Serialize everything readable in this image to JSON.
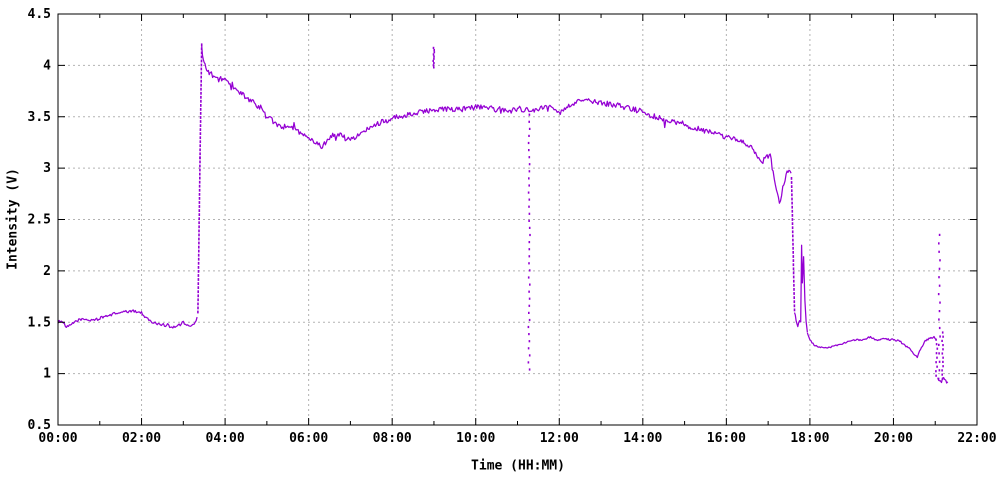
{
  "figure": {
    "background": "#ffffff",
    "border_color": "#000000",
    "grid_color": "#b3b3b3",
    "text_color": "#000000"
  },
  "chart_data": {
    "type": "line",
    "title": "",
    "xlabel": "Time (HH:MM)",
    "ylabel": "Intensity (V)",
    "xlim": [
      0,
      22
    ],
    "ylim": [
      0.5,
      4.5
    ],
    "grid": true,
    "legend": "none",
    "line_color": "#9400d3",
    "xticks_major": [
      {
        "t": 0,
        "label": "00:00"
      },
      {
        "t": 2,
        "label": "02:00"
      },
      {
        "t": 4,
        "label": "04:00"
      },
      {
        "t": 6,
        "label": "06:00"
      },
      {
        "t": 8,
        "label": "08:00"
      },
      {
        "t": 10,
        "label": "10:00"
      },
      {
        "t": 12,
        "label": "12:00"
      },
      {
        "t": 14,
        "label": "14:00"
      },
      {
        "t": 16,
        "label": "16:00"
      },
      {
        "t": 18,
        "label": "18:00"
      },
      {
        "t": 20,
        "label": "20:00"
      },
      {
        "t": 22,
        "label": "22:00"
      }
    ],
    "xticks_minor": [
      1,
      3,
      5,
      7,
      9,
      11,
      13,
      15,
      17,
      19,
      21
    ],
    "yticks": [
      {
        "v": 0.5,
        "label": "0.5"
      },
      {
        "v": 1.0,
        "label": "1"
      },
      {
        "v": 1.5,
        "label": "1.5"
      },
      {
        "v": 2.0,
        "label": "2"
      },
      {
        "v": 2.5,
        "label": "2.5"
      },
      {
        "v": 3.0,
        "label": "3"
      },
      {
        "v": 3.5,
        "label": "3.5"
      },
      {
        "v": 4.0,
        "label": "4"
      },
      {
        "v": 4.5,
        "label": "4.5"
      }
    ],
    "series": [
      {
        "name": "intensity",
        "segments": [
          {
            "style": "line",
            "noise": 0.013,
            "points": [
              [
                0.0,
                1.5
              ],
              [
                0.08,
                1.52
              ],
              [
                0.2,
                1.45
              ],
              [
                0.3,
                1.47
              ],
              [
                0.42,
                1.51
              ],
              [
                0.55,
                1.53
              ],
              [
                0.75,
                1.52
              ],
              [
                0.95,
                1.53
              ],
              [
                1.15,
                1.56
              ],
              [
                1.4,
                1.59
              ],
              [
                1.6,
                1.6
              ],
              [
                1.85,
                1.61
              ],
              [
                2.0,
                1.59
              ],
              [
                2.1,
                1.55
              ],
              [
                2.25,
                1.5
              ],
              [
                2.45,
                1.48
              ],
              [
                2.6,
                1.47
              ],
              [
                2.75,
                1.45
              ],
              [
                2.9,
                1.47
              ],
              [
                3.0,
                1.5
              ],
              [
                3.08,
                1.46
              ],
              [
                3.18,
                1.47
              ],
              [
                3.28,
                1.49
              ],
              [
                3.33,
                1.55
              ]
            ]
          },
          {
            "style": "dots",
            "noise": 0,
            "points": [
              [
                3.35,
                1.6
              ],
              [
                3.4,
                3.1
              ],
              [
                3.44,
                4.2
              ]
            ]
          },
          {
            "style": "line",
            "noise": 0.027,
            "points": [
              [
                3.44,
                4.2
              ],
              [
                3.46,
                4.1
              ],
              [
                3.5,
                4.01
              ],
              [
                3.56,
                3.97
              ],
              [
                3.62,
                3.93
              ],
              [
                3.7,
                3.9
              ],
              [
                3.8,
                3.88
              ],
              [
                3.92,
                3.87
              ],
              [
                4.02,
                3.85
              ],
              [
                4.12,
                3.82
              ],
              [
                4.25,
                3.78
              ],
              [
                4.4,
                3.73
              ],
              [
                4.55,
                3.68
              ],
              [
                4.7,
                3.63
              ],
              [
                4.85,
                3.59
              ],
              [
                5.0,
                3.52
              ],
              [
                5.15,
                3.45
              ],
              [
                5.3,
                3.42
              ],
              [
                5.45,
                3.4
              ],
              [
                5.6,
                3.38
              ],
              [
                5.75,
                3.36
              ],
              [
                5.9,
                3.33
              ],
              [
                6.05,
                3.28
              ],
              [
                6.2,
                3.24
              ],
              [
                6.33,
                3.21
              ],
              [
                6.45,
                3.28
              ],
              [
                6.55,
                3.32
              ],
              [
                6.65,
                3.29
              ],
              [
                6.78,
                3.34
              ],
              [
                6.9,
                3.28
              ],
              [
                7.0,
                3.27
              ],
              [
                7.15,
                3.31
              ],
              [
                7.3,
                3.35
              ],
              [
                7.5,
                3.39
              ],
              [
                7.7,
                3.44
              ],
              [
                7.9,
                3.47
              ],
              [
                8.1,
                3.5
              ],
              [
                8.35,
                3.52
              ],
              [
                8.6,
                3.54
              ],
              [
                8.85,
                3.56
              ],
              [
                9.1,
                3.57
              ],
              [
                9.35,
                3.58
              ],
              [
                9.6,
                3.57
              ],
              [
                9.85,
                3.59
              ],
              [
                10.1,
                3.59
              ],
              [
                10.35,
                3.58
              ],
              [
                10.6,
                3.56
              ],
              [
                10.85,
                3.56
              ],
              [
                11.1,
                3.57
              ],
              [
                11.35,
                3.56
              ],
              [
                11.55,
                3.59
              ],
              [
                11.7,
                3.61
              ],
              [
                11.85,
                3.57
              ],
              [
                12.0,
                3.54
              ],
              [
                12.15,
                3.59
              ],
              [
                12.3,
                3.62
              ],
              [
                12.5,
                3.65
              ],
              [
                12.65,
                3.66
              ],
              [
                12.8,
                3.65
              ],
              [
                12.95,
                3.64
              ],
              [
                13.1,
                3.63
              ],
              [
                13.3,
                3.62
              ],
              [
                13.5,
                3.6
              ],
              [
                13.7,
                3.58
              ],
              [
                13.9,
                3.56
              ],
              [
                14.1,
                3.53
              ],
              [
                14.3,
                3.5
              ],
              [
                14.5,
                3.48
              ],
              [
                14.7,
                3.46
              ],
              [
                14.9,
                3.44
              ],
              [
                15.1,
                3.41
              ],
              [
                15.3,
                3.39
              ],
              [
                15.5,
                3.36
              ],
              [
                15.7,
                3.34
              ],
              [
                15.9,
                3.31
              ],
              [
                16.1,
                3.29
              ],
              [
                16.3,
                3.27
              ],
              [
                16.45,
                3.24
              ],
              [
                16.6,
                3.2
              ],
              [
                16.75,
                3.12
              ],
              [
                16.85,
                3.06
              ],
              [
                16.95,
                3.11
              ],
              [
                17.05,
                3.12
              ],
              [
                17.12,
                2.98
              ],
              [
                17.2,
                2.78
              ],
              [
                17.27,
                2.65
              ],
              [
                17.35,
                2.8
              ],
              [
                17.43,
                2.93
              ],
              [
                17.5,
                2.99
              ],
              [
                17.55,
                2.95
              ]
            ]
          },
          {
            "style": "dots",
            "noise": 0,
            "points": [
              [
                17.56,
                2.9
              ],
              [
                17.63,
                1.62
              ]
            ]
          },
          {
            "style": "line",
            "noise": 0.012,
            "points": [
              [
                17.63,
                1.6
              ],
              [
                17.67,
                1.52
              ],
              [
                17.71,
                1.47
              ],
              [
                17.75,
                1.52
              ],
              [
                17.78,
                1.5
              ]
            ]
          },
          {
            "style": "line",
            "noise": 0.008,
            "points": [
              [
                17.78,
                1.5
              ],
              [
                17.8,
                2.25
              ],
              [
                17.82,
                1.88
              ],
              [
                17.85,
                2.14
              ],
              [
                17.88,
                1.72
              ],
              [
                17.91,
                1.5
              ],
              [
                17.94,
                1.4
              ]
            ]
          },
          {
            "style": "line",
            "noise": 0.008,
            "points": [
              [
                17.94,
                1.4
              ],
              [
                18.0,
                1.33
              ],
              [
                18.1,
                1.28
              ],
              [
                18.2,
                1.26
              ],
              [
                18.35,
                1.25
              ],
              [
                18.5,
                1.26
              ],
              [
                18.7,
                1.28
              ],
              [
                18.9,
                1.31
              ],
              [
                19.1,
                1.33
              ],
              [
                19.3,
                1.33
              ],
              [
                19.45,
                1.36
              ],
              [
                19.6,
                1.32
              ],
              [
                19.75,
                1.35
              ],
              [
                19.9,
                1.33
              ],
              [
                20.0,
                1.33
              ],
              [
                20.15,
                1.32
              ],
              [
                20.25,
                1.28
              ],
              [
                20.4,
                1.24
              ],
              [
                20.5,
                1.18
              ],
              [
                20.57,
                1.16
              ],
              [
                20.65,
                1.24
              ],
              [
                20.76,
                1.32
              ],
              [
                20.85,
                1.34
              ],
              [
                20.97,
                1.35
              ],
              [
                21.02,
                1.33
              ]
            ]
          },
          {
            "style": "line",
            "noise": 0.022,
            "points": [
              [
                21.06,
                0.97
              ],
              [
                21.1,
                0.94
              ],
              [
                21.15,
                0.92
              ],
              [
                21.2,
                0.95
              ],
              [
                21.25,
                0.93
              ],
              [
                21.3,
                0.92
              ]
            ]
          }
        ],
        "dropout_events": [
          {
            "name": "blip-09:00",
            "t": 9.0,
            "from": 3.98,
            "to": 4.17,
            "spacing": 2
          },
          {
            "name": "dropout-11:17",
            "t": 11.28,
            "from": 3.52,
            "to": 1.04,
            "spacing": 7
          },
          {
            "name": "drop-21:02",
            "t": 21.03,
            "from": 1.33,
            "to": 0.98,
            "spacing": 4
          },
          {
            "name": "spike-21:06",
            "t": 21.1,
            "from": 0.95,
            "to": 2.35,
            "spacing": 8
          },
          {
            "name": "drop-21:10",
            "t": 21.17,
            "from": 1.4,
            "to": 0.95,
            "spacing": 4
          }
        ]
      }
    ]
  }
}
